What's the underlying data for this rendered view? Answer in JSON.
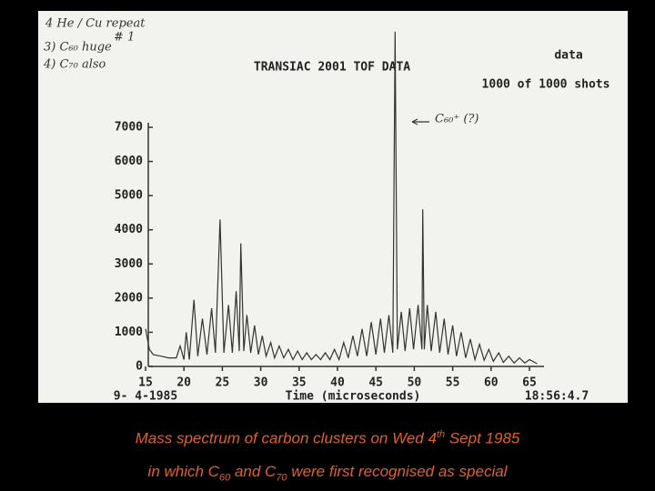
{
  "chart_data": {
    "type": "line",
    "title": "TRANSIAC 2001 TOF DATA",
    "header_right": [
      "data",
      "1000 of 1000 shots"
    ],
    "date": "9- 4-1985",
    "time": "18:56:4.7",
    "x_label": "Time (microseconds)",
    "notes": [
      "4 He / Cu repeat",
      "# 1",
      "3) C₆₀ huge",
      "4) C₇₀ also"
    ],
    "annotation": "C₆₀⁺ (?)",
    "color": "#333333",
    "x": [
      15,
      15.5,
      16,
      17,
      18,
      19,
      19.5,
      20,
      20.3,
      20.7,
      21.3,
      21.8,
      22.4,
      23,
      23.6,
      24.1,
      24.7,
      25.2,
      25.8,
      26.3,
      26.8,
      27.2,
      27.4,
      27.8,
      28.2,
      28.7,
      29.2,
      29.7,
      30.2,
      30.7,
      31.3,
      31.8,
      32.4,
      33,
      33.6,
      34.2,
      34.8,
      35.4,
      36,
      36.6,
      37.2,
      37.8,
      38.4,
      39,
      39.6,
      40.2,
      40.8,
      41.4,
      42,
      42.6,
      43.2,
      43.8,
      44.4,
      45,
      45.6,
      46.1,
      46.7,
      47.2,
      47.5,
      47.8,
      48.3,
      48.8,
      49.4,
      49.9,
      50.5,
      51,
      51.1,
      51.3,
      51.7,
      52.2,
      52.8,
      53.3,
      53.9,
      54.4,
      55,
      55.5,
      56.1,
      56.7,
      57.3,
      57.9,
      58.5,
      59.1,
      59.7,
      60.3,
      61,
      61.6,
      62.3,
      63,
      63.7,
      64.4,
      65,
      66
    ],
    "values": [
      1100,
      500,
      350,
      300,
      250,
      250,
      600,
      200,
      1000,
      200,
      1950,
      300,
      1400,
      350,
      1700,
      400,
      4300,
      400,
      1800,
      400,
      2200,
      450,
      3600,
      450,
      1500,
      400,
      1200,
      350,
      900,
      300,
      700,
      250,
      600,
      250,
      500,
      200,
      450,
      200,
      400,
      200,
      350,
      200,
      400,
      200,
      500,
      200,
      700,
      250,
      900,
      300,
      1100,
      300,
      1300,
      350,
      1400,
      400,
      1500,
      400,
      9800,
      500,
      1600,
      450,
      1700,
      500,
      1800,
      500,
      4600,
      500,
      1800,
      450,
      1600,
      400,
      1400,
      350,
      1200,
      300,
      1000,
      250,
      800,
      200,
      650,
      180,
      500,
      150,
      400,
      120,
      300,
      100,
      250,
      100,
      200,
      80
    ],
    "xlim": [
      15,
      65
    ],
    "xticks": [
      15,
      20,
      25,
      30,
      35,
      40,
      45,
      50,
      55,
      60,
      65
    ],
    "ylim": [
      0,
      7000
    ],
    "yticks": [
      0,
      1000,
      2000,
      3000,
      4000,
      5000,
      6000,
      7000
    ]
  },
  "caption": {
    "line1": [
      "Mass spectrum of carbon clusters on Wed 4",
      "th",
      " Sept 1985"
    ],
    "line2": [
      "in which C",
      "60",
      " and C",
      "70",
      " were first recognised as special"
    ]
  }
}
